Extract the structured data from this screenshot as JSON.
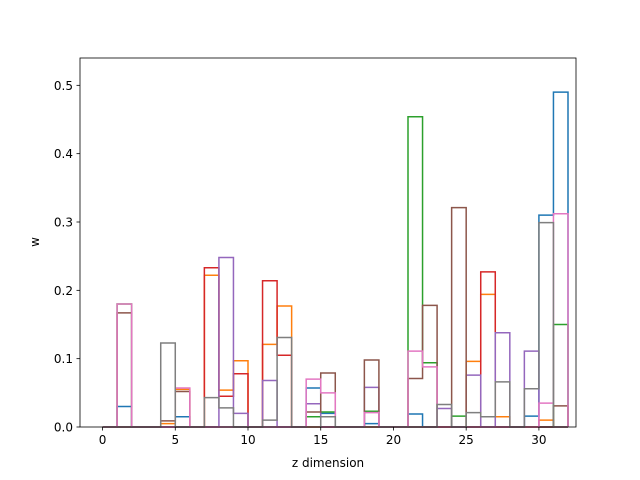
{
  "chart_data": {
    "type": "line",
    "title": "",
    "xlabel": "z dimension",
    "ylabel": "w",
    "xlim": [
      -1.55,
      32.55
    ],
    "ylim": [
      0.0,
      0.54
    ],
    "grid": false,
    "legend": "none",
    "x_ticks": [
      0,
      5,
      10,
      15,
      20,
      25,
      30
    ],
    "y_ticks": [
      0.0,
      0.1,
      0.2,
      0.3,
      0.4,
      0.5
    ],
    "x_tick_labels": [
      "0",
      "5",
      "10",
      "15",
      "20",
      "25",
      "30"
    ],
    "y_tick_labels": [
      "0.0",
      "0.1",
      "0.2",
      "0.3",
      "0.4",
      "0.5"
    ],
    "series": [
      {
        "color": "#1f77b4",
        "values": [
          0.0,
          0.03,
          0.0,
          0.0,
          0.0,
          0.015,
          0.0,
          0.0,
          0.0,
          0.0,
          0.0,
          0.0,
          0.0,
          0.0,
          0.057,
          0.02,
          0.0,
          0.0,
          0.005,
          0.0,
          0.0,
          0.019,
          0.0,
          0.0,
          0.0,
          0.0,
          0.0,
          0.0,
          0.0,
          0.016,
          0.31,
          0.49
        ]
      },
      {
        "color": "#ff7f0e",
        "values": [
          0.0,
          0.0,
          0.0,
          0.0,
          0.005,
          0.055,
          0.0,
          0.222,
          0.054,
          0.097,
          0.0,
          0.121,
          0.177,
          0.0,
          0.0,
          0.0,
          0.0,
          0.0,
          0.0,
          0.0,
          0.0,
          0.0,
          0.0,
          0.0,
          0.0,
          0.096,
          0.194,
          0.015,
          0.0,
          0.0,
          0.01,
          0.0
        ]
      },
      {
        "color": "#2ca02c",
        "values": [
          0.0,
          0.18,
          0.0,
          0.0,
          0.0,
          0.0,
          0.0,
          0.0,
          0.0,
          0.0,
          0.0,
          0.0,
          0.0,
          0.0,
          0.015,
          0.022,
          0.0,
          0.0,
          0.023,
          0.0,
          0.0,
          0.454,
          0.094,
          0.0,
          0.016,
          0.0,
          0.0,
          0.0,
          0.0,
          0.0,
          0.0,
          0.15
        ]
      },
      {
        "color": "#d62728",
        "values": [
          0.0,
          0.0,
          0.0,
          0.0,
          0.0,
          0.0,
          0.0,
          0.233,
          0.045,
          0.078,
          0.0,
          0.214,
          0.105,
          0.0,
          0.0,
          0.0,
          0.0,
          0.0,
          0.0,
          0.0,
          0.0,
          0.0,
          0.0,
          0.0,
          0.0,
          0.0,
          0.227,
          0.0,
          0.0,
          0.0,
          0.0,
          0.0
        ]
      },
      {
        "color": "#9467bd",
        "values": [
          0.0,
          0.0,
          0.0,
          0.0,
          0.0,
          0.0,
          0.0,
          0.0,
          0.248,
          0.02,
          0.0,
          0.068,
          0.0,
          0.0,
          0.034,
          0.0,
          0.0,
          0.0,
          0.058,
          0.0,
          0.0,
          0.0,
          0.0,
          0.027,
          0.0,
          0.076,
          0.0,
          0.138,
          0.0,
          0.111,
          0.0,
          0.0
        ]
      },
      {
        "color": "#8c564b",
        "values": [
          0.0,
          0.167,
          0.0,
          0.0,
          0.009,
          0.052,
          0.0,
          0.0,
          0.0,
          0.0,
          0.0,
          0.0,
          0.0,
          0.0,
          0.022,
          0.079,
          0.0,
          0.0,
          0.098,
          0.0,
          0.0,
          0.071,
          0.178,
          0.0,
          0.321,
          0.0,
          0.0,
          0.0,
          0.0,
          0.0,
          0.0,
          0.031
        ]
      },
      {
        "color": "#e377c2",
        "values": [
          0.0,
          0.18,
          0.0,
          0.0,
          0.0,
          0.057,
          0.0,
          0.0,
          0.0,
          0.0,
          0.0,
          0.0,
          0.0,
          0.0,
          0.07,
          0.05,
          0.0,
          0.0,
          0.021,
          0.0,
          0.0,
          0.111,
          0.088,
          0.0,
          0.0,
          0.0,
          0.0,
          0.0,
          0.0,
          0.0,
          0.035,
          0.312
        ]
      },
      {
        "color": "#7f7f7f",
        "values": [
          0.0,
          0.0,
          0.0,
          0.0,
          0.123,
          0.0,
          0.0,
          0.043,
          0.028,
          0.0,
          0.0,
          0.01,
          0.131,
          0.0,
          0.0,
          0.015,
          0.0,
          0.0,
          0.0,
          0.0,
          0.0,
          0.0,
          0.0,
          0.033,
          0.0,
          0.021,
          0.015,
          0.066,
          0.0,
          0.056,
          0.299,
          0.0
        ]
      }
    ]
  }
}
